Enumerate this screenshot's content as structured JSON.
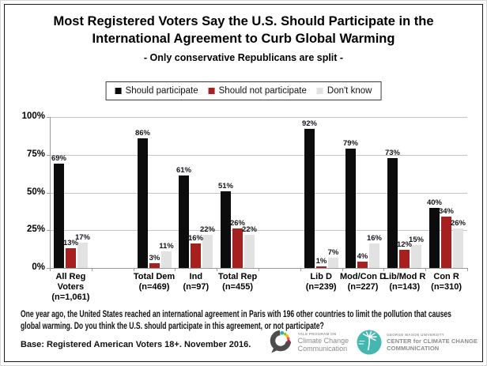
{
  "title_lines": [
    "Most Registered Voters Say the U.S. Should Participate in the",
    "International Agreement to Curb Global Warming"
  ],
  "subtitle": "- Only conservative Republicans are split -",
  "chart_data": {
    "type": "bar",
    "title": "Most Registered Voters Say the U.S. Should Participate in the International Agreement to Curb Global Warming",
    "subtitle": "- Only conservative Republicans are split -",
    "legend_position": "top",
    "grid": true,
    "ylim": [
      0,
      100
    ],
    "yticks": [
      0,
      25,
      50,
      75,
      100
    ],
    "ytick_suffix": "%",
    "value_suffix": "%",
    "total_slots": 10,
    "categories": [
      {
        "label_lines": [
          "All Reg",
          "Voters",
          "(n=1,061)"
        ],
        "slot": 0
      },
      {
        "label_lines": [
          "Total Dem",
          "(n=469)"
        ],
        "slot": 2
      },
      {
        "label_lines": [
          "Ind",
          "(n=97)"
        ],
        "slot": 3
      },
      {
        "label_lines": [
          "Total Rep",
          "(n=455)"
        ],
        "slot": 4
      },
      {
        "label_lines": [
          "Lib D",
          "(n=239)"
        ],
        "slot": 6
      },
      {
        "label_lines": [
          "Mod/Con D",
          "(n=227)"
        ],
        "slot": 7
      },
      {
        "label_lines": [
          "Lib/Mod R",
          "(n=143)"
        ],
        "slot": 8
      },
      {
        "label_lines": [
          "Con R",
          "(n=310)"
        ],
        "slot": 9
      }
    ],
    "series": [
      {
        "name": "Should participate",
        "color": "#0c0c0c",
        "values": [
          69,
          86,
          61,
          51,
          92,
          79,
          73,
          40
        ]
      },
      {
        "name": "Should not participate",
        "color": "#a62020",
        "values": [
          13,
          3,
          16,
          26,
          1,
          4,
          12,
          34
        ]
      },
      {
        "name": "Don't know",
        "color": "#e2e2e2",
        "values": [
          17,
          11,
          22,
          22,
          7,
          16,
          15,
          26
        ]
      }
    ]
  },
  "question": "One year ago, the United States reached an international agreement in Paris with 196 other countries to limit the pollution that causes global warming. Do you think the U.S. should participate in this agreement, or not participate?",
  "base_note": "Base: Registered American Voters 18+. November 2016.",
  "logos": {
    "yale": {
      "program": "YALE PROGRAM ON",
      "line1": "Climate Change",
      "line2": "Communication"
    },
    "gmu": {
      "university": "GEORGE MASON UNIVERSITY",
      "line1": "CENTER for CLIMATE CHANGE",
      "line2": "COMMUNICATION"
    }
  },
  "colors": {
    "bar_black": "#0c0c0c",
    "bar_red": "#a62020",
    "bar_gray": "#e2e2e2",
    "gridline": "#c3c3c3",
    "axis": "#9a9a9a",
    "yale_teal": "#2bb3ac",
    "gmu_teal": "#44b7b0"
  }
}
